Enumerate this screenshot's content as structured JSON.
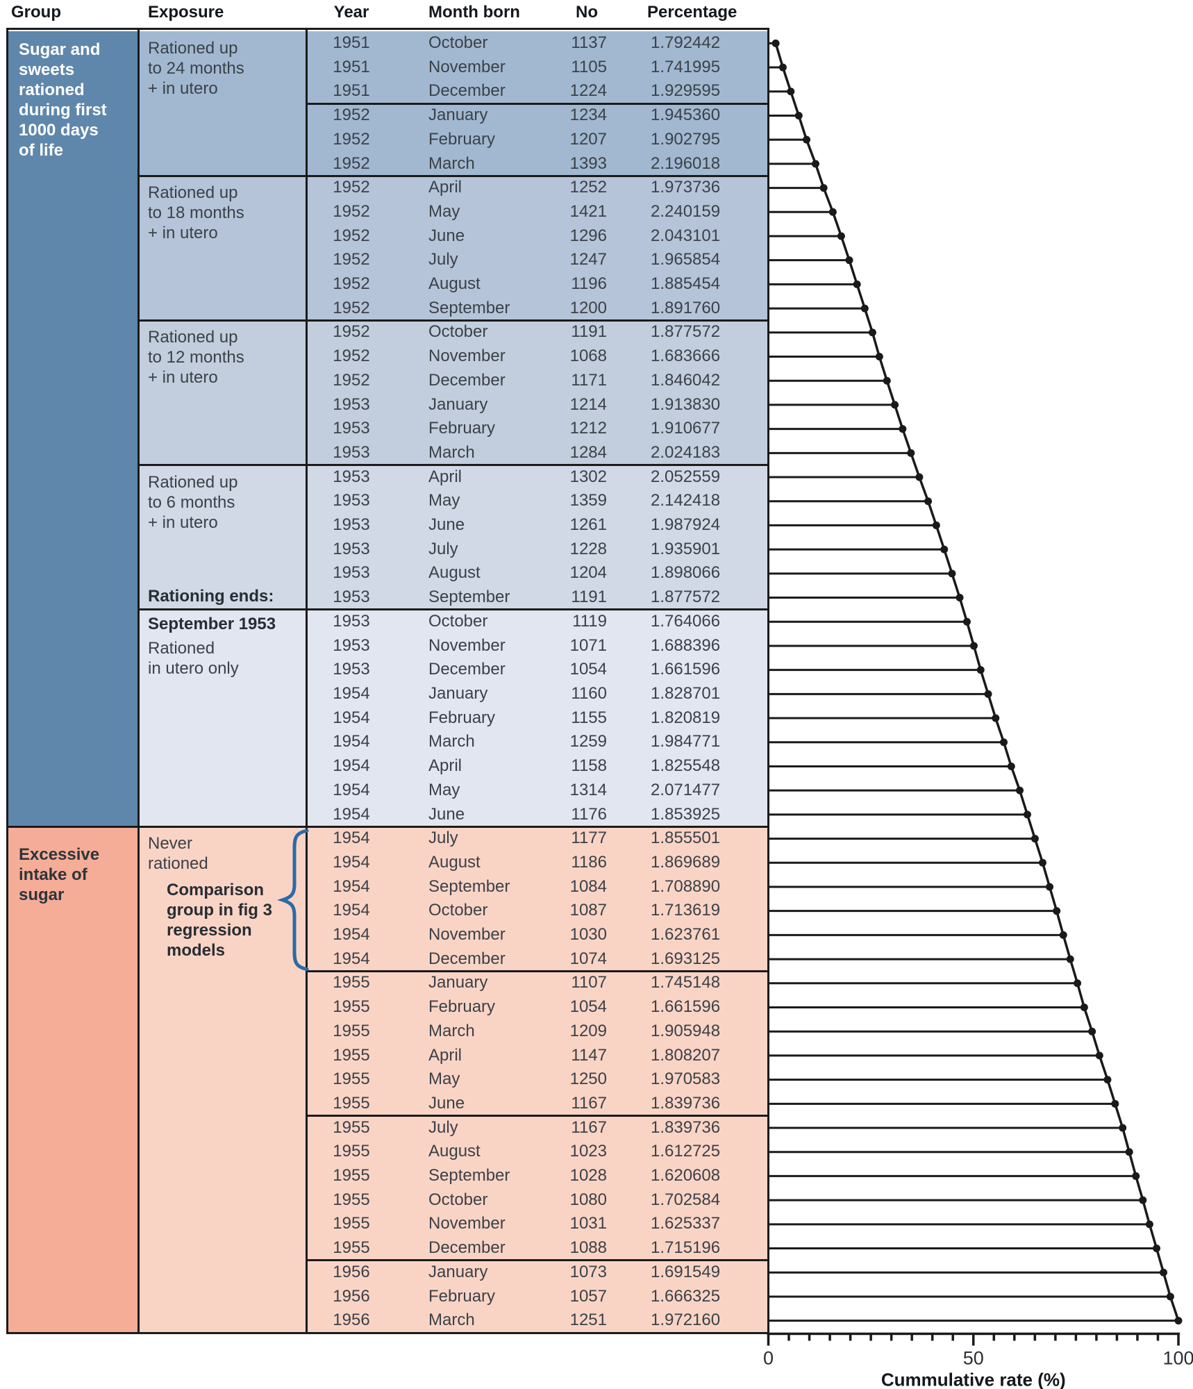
{
  "columns": {
    "group": "Group",
    "exposure": "Exposure",
    "year": "Year",
    "month": "Month born",
    "no": "No",
    "percentage": "Percentage"
  },
  "groups": [
    {
      "start": 1,
      "end": 33,
      "bg": "#5f87ab",
      "text_color": "#ffffff",
      "lines": [
        "Sugar and",
        "sweets",
        "rationed",
        "during first",
        "1000 days",
        "of life"
      ]
    },
    {
      "start": 34,
      "end": 54,
      "bg": "#f5ad97",
      "text_color": "#2e343b",
      "lines": [
        "Excessive",
        "intake of",
        "sugar"
      ]
    }
  ],
  "exposure_blocks": [
    {
      "start": 1,
      "end": 6,
      "bg": "#a1b8d0",
      "lines": [
        "Rationed up",
        "to 24 months",
        "+ in utero"
      ]
    },
    {
      "start": 7,
      "end": 12,
      "bg": "#b5c4d8",
      "lines": [
        "Rationed up",
        "to 18 months",
        "+ in utero"
      ]
    },
    {
      "start": 13,
      "end": 18,
      "bg": "#c2cedd",
      "lines": [
        "Rationed up",
        "to 12 months",
        "+ in utero"
      ]
    },
    {
      "start": 19,
      "end": 24,
      "bg": "#d1d9e7",
      "lines": [
        "Rationed up",
        "to 6 months",
        "+ in utero"
      ],
      "footer_bold": "Rationing ends:"
    },
    {
      "start": 25,
      "end": 33,
      "bg": "#e2e6f0",
      "bold_first": "September 1953",
      "lines": [
        "Rationed",
        "in utero only"
      ]
    },
    {
      "start": 34,
      "end": 54,
      "bg": "#f9d4c5",
      "lines": [
        "Never",
        "rationed"
      ],
      "annotation_bold": [
        "Comparison",
        "group in fig 3",
        "regression",
        "models"
      ],
      "brace": {
        "color": "#2b6ba5",
        "start_row": 34,
        "end_row": 39
      }
    }
  ],
  "rows": [
    [
      "1951",
      "October",
      "1137",
      "1.792442"
    ],
    [
      "1951",
      "November",
      "1105",
      "1.741995"
    ],
    [
      "1951",
      "December",
      "1224",
      "1.929595"
    ],
    [
      "1952",
      "January",
      "1234",
      "1.945360"
    ],
    [
      "1952",
      "February",
      "1207",
      "1.902795"
    ],
    [
      "1952",
      "March",
      "1393",
      "2.196018"
    ],
    [
      "1952",
      "April",
      "1252",
      "1.973736"
    ],
    [
      "1952",
      "May",
      "1421",
      "2.240159"
    ],
    [
      "1952",
      "June",
      "1296",
      "2.043101"
    ],
    [
      "1952",
      "July",
      "1247",
      "1.965854"
    ],
    [
      "1952",
      "August",
      "1196",
      "1.885454"
    ],
    [
      "1952",
      "September",
      "1200",
      "1.891760"
    ],
    [
      "1952",
      "October",
      "1191",
      "1.877572"
    ],
    [
      "1952",
      "November",
      "1068",
      "1.683666"
    ],
    [
      "1952",
      "December",
      "1171",
      "1.846042"
    ],
    [
      "1953",
      "January",
      "1214",
      "1.913830"
    ],
    [
      "1953",
      "February",
      "1212",
      "1.910677"
    ],
    [
      "1953",
      "March",
      "1284",
      "2.024183"
    ],
    [
      "1953",
      "April",
      "1302",
      "2.052559"
    ],
    [
      "1953",
      "May",
      "1359",
      "2.142418"
    ],
    [
      "1953",
      "June",
      "1261",
      "1.987924"
    ],
    [
      "1953",
      "July",
      "1228",
      "1.935901"
    ],
    [
      "1953",
      "August",
      "1204",
      "1.898066"
    ],
    [
      "1953",
      "September",
      "1191",
      "1.877572"
    ],
    [
      "1953",
      "October",
      "1119",
      "1.764066"
    ],
    [
      "1953",
      "November",
      "1071",
      "1.688396"
    ],
    [
      "1953",
      "December",
      "1054",
      "1.661596"
    ],
    [
      "1954",
      "January",
      "1160",
      "1.828701"
    ],
    [
      "1954",
      "February",
      "1155",
      "1.820819"
    ],
    [
      "1954",
      "March",
      "1259",
      "1.984771"
    ],
    [
      "1954",
      "April",
      "1158",
      "1.825548"
    ],
    [
      "1954",
      "May",
      "1314",
      "2.071477"
    ],
    [
      "1954",
      "June",
      "1176",
      "1.853925"
    ],
    [
      "1954",
      "July",
      "1177",
      "1.855501"
    ],
    [
      "1954",
      "August",
      "1186",
      "1.869689"
    ],
    [
      "1954",
      "September",
      "1084",
      "1.708890"
    ],
    [
      "1954",
      "October",
      "1087",
      "1.713619"
    ],
    [
      "1954",
      "November",
      "1030",
      "1.623761"
    ],
    [
      "1954",
      "December",
      "1074",
      "1.693125"
    ],
    [
      "1955",
      "January",
      "1107",
      "1.745148"
    ],
    [
      "1955",
      "February",
      "1054",
      "1.661596"
    ],
    [
      "1955",
      "March",
      "1209",
      "1.905948"
    ],
    [
      "1955",
      "April",
      "1147",
      "1.808207"
    ],
    [
      "1955",
      "May",
      "1250",
      "1.970583"
    ],
    [
      "1955",
      "June",
      "1167",
      "1.839736"
    ],
    [
      "1955",
      "July",
      "1167",
      "1.839736"
    ],
    [
      "1955",
      "August",
      "1023",
      "1.612725"
    ],
    [
      "1955",
      "September",
      "1028",
      "1.620608"
    ],
    [
      "1955",
      "October",
      "1080",
      "1.702584"
    ],
    [
      "1955",
      "November",
      "1031",
      "1.625337"
    ],
    [
      "1955",
      "December",
      "1088",
      "1.715196"
    ],
    [
      "1956",
      "January",
      "1073",
      "1.691549"
    ],
    [
      "1956",
      "February",
      "1057",
      "1.666325"
    ],
    [
      "1956",
      "March",
      "1251",
      "1.972160"
    ]
  ],
  "separators": {
    "data_after": [
      3,
      39,
      45,
      51
    ],
    "exposure_after": [
      6,
      12,
      18,
      24
    ],
    "group_after": [
      33
    ]
  },
  "chart_data": {
    "type": "line",
    "xlabel": "Cummulative rate (%)",
    "xlim": [
      0,
      100
    ],
    "xticks": [
      "0",
      "50",
      "100"
    ],
    "minor_tick_step": 5,
    "y_axis": "one row per birth month, October 1951 to March 1956",
    "representation": "each row has a horizontal bar from 0 to the cumulative sum of the monthly percentages; endpoint dots are joined into a cumulative curve reaching 100%",
    "monthly_percentages": [
      1.792442,
      1.741995,
      1.929595,
      1.94536,
      1.902795,
      2.196018,
      1.973736,
      2.240159,
      2.043101,
      1.965854,
      1.885454,
      1.89176,
      1.877572,
      1.683666,
      1.846042,
      1.91383,
      1.910677,
      2.024183,
      2.052559,
      2.142418,
      1.987924,
      1.935901,
      1.898066,
      1.877572,
      1.764066,
      1.688396,
      1.661596,
      1.828701,
      1.820819,
      1.984771,
      1.825548,
      2.071477,
      1.853925,
      1.855501,
      1.869689,
      1.70889,
      1.713619,
      1.623761,
      1.693125,
      1.745148,
      1.661596,
      1.905948,
      1.808207,
      1.970583,
      1.839736,
      1.839736,
      1.612725,
      1.620608,
      1.702584,
      1.625337,
      1.715196,
      1.691549,
      1.666325,
      1.97216
    ]
  },
  "colors": {
    "border": "#1b1b1b",
    "chart_line": "#1a1a1a",
    "header_text": "#14181c",
    "body_text": "#3b4148",
    "brace_blue": "#2b6ba5"
  }
}
